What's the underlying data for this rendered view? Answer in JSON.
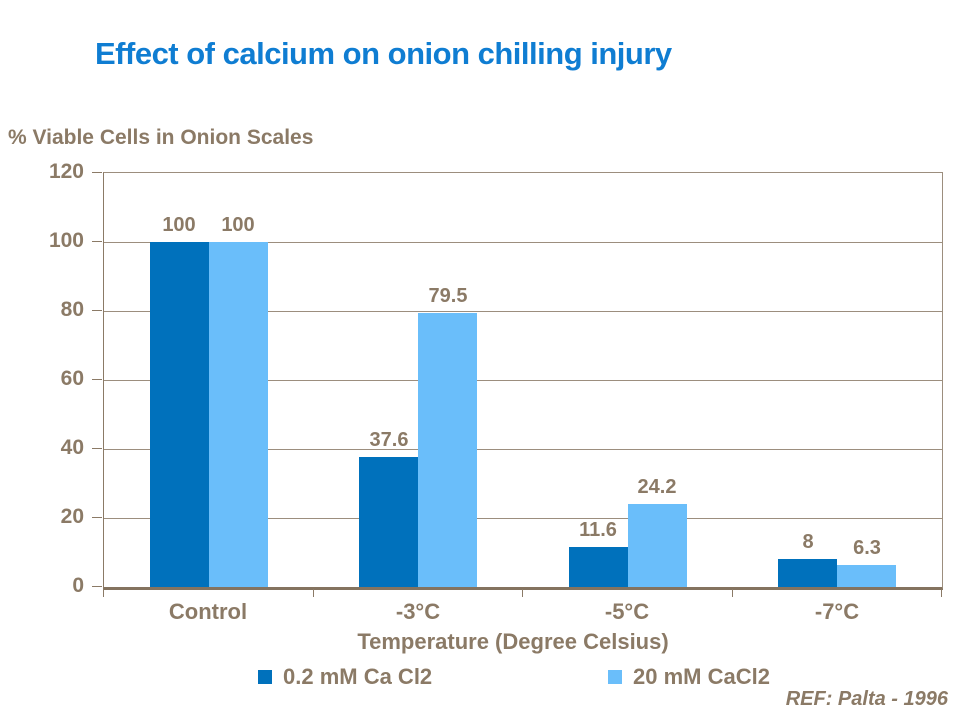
{
  "slide": {
    "ref": "REF: Palta - 1996"
  },
  "colors": {
    "title_blue": "#0f7dd2",
    "series1_dark_blue": "#0071bc",
    "series2_light_blue": "#6abefa",
    "text_brown": "#8b7a66",
    "gridline_brown": "#9c8e7e",
    "axis_brown": "#84735f",
    "background": "#ffffff"
  },
  "chart_data": {
    "type": "bar",
    "title": "Effect of calcium on onion chilling injury",
    "axis_title_y": "% Viable Cells in Onion Scales",
    "xlabel": "Temperature (Degree Celsius)",
    "categories": [
      "Control",
      "-3°C",
      "-5°C",
      "-7°C"
    ],
    "series": [
      {
        "name": "0.2 mM Ca Cl2",
        "color": "#0071bc",
        "values": [
          100,
          37.6,
          11.6,
          8
        ]
      },
      {
        "name": "20 mM CaCl2",
        "color": "#6abefa",
        "values": [
          100,
          79.5,
          24.2,
          6.3
        ]
      }
    ],
    "ylim": [
      0,
      120
    ],
    "yticks": [
      0,
      20,
      40,
      60,
      80,
      100,
      120
    ],
    "grid": true,
    "legend_position": "bottom"
  }
}
